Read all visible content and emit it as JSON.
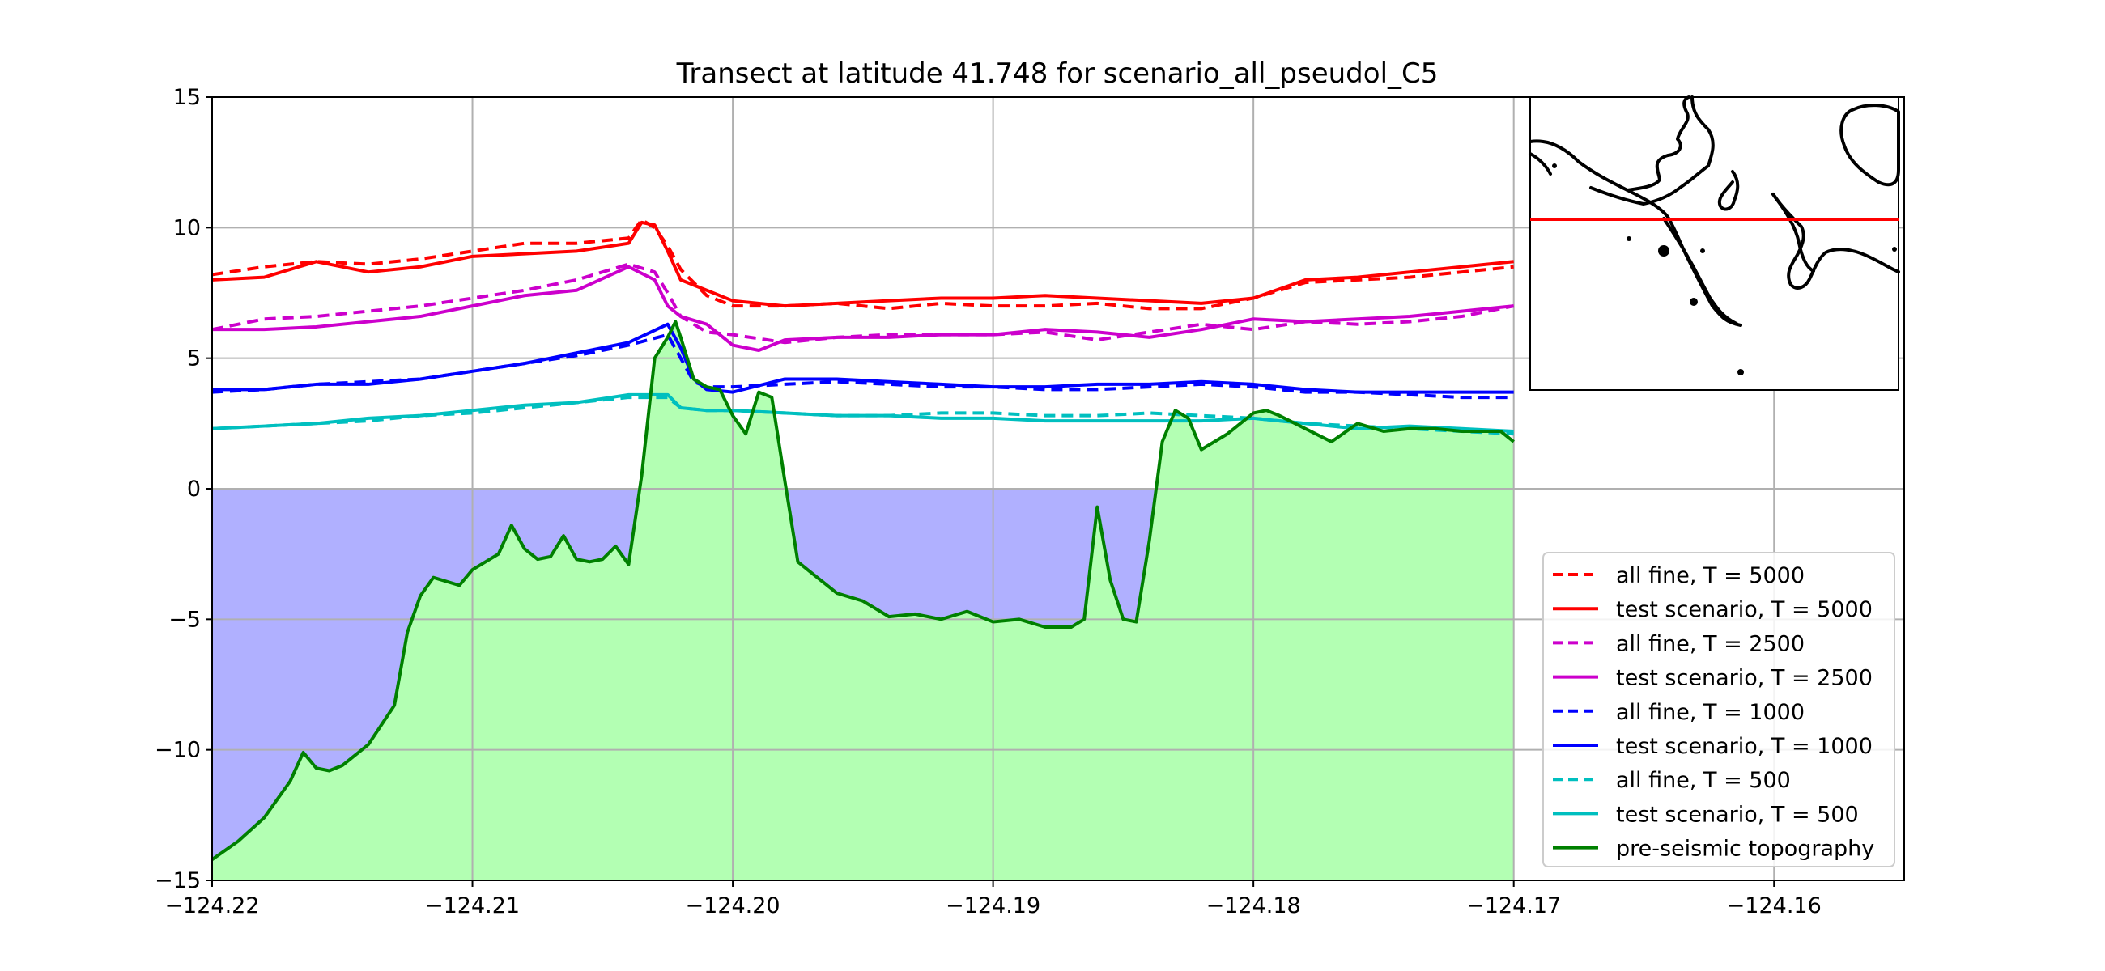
{
  "chart_data": {
    "type": "line",
    "title": "Transect at latitude 41.748 for scenario_all_pseudol_C5",
    "xlabel": "",
    "ylabel": "",
    "xlim": [
      -124.22,
      -124.155
    ],
    "ylim": [
      -15,
      15
    ],
    "x_ticks": [
      -124.22,
      -124.21,
      -124.2,
      -124.19,
      -124.18,
      -124.17,
      -124.16
    ],
    "x_tick_labels": [
      "−124.22",
      "−124.21",
      "−124.20",
      "−124.19",
      "−124.18",
      "−124.17",
      "−124.16"
    ],
    "y_ticks": [
      -15,
      -10,
      -5,
      0,
      5,
      10,
      15
    ],
    "y_tick_labels": [
      "−15",
      "−10",
      "−5",
      "0",
      "5",
      "10",
      "15"
    ],
    "grid": true,
    "legend_position": "lower-right",
    "water_color": "#b0b0ff",
    "land_color": "#b3ffb3",
    "series": [
      {
        "name": "all fine, T = 5000",
        "color": "#ff0000",
        "dash": true,
        "x": [
          -124.22,
          -124.218,
          -124.216,
          -124.214,
          -124.212,
          -124.21,
          -124.208,
          -124.206,
          -124.204,
          -124.2035,
          -124.203,
          -124.2025,
          -124.202,
          -124.201,
          -124.2,
          -124.198,
          -124.196,
          -124.194,
          -124.192,
          -124.19,
          -124.188,
          -124.186,
          -124.184,
          -124.182,
          -124.18,
          -124.178,
          -124.176,
          -124.174,
          -124.172,
          -124.17
        ],
        "y": [
          8.2,
          8.5,
          8.7,
          8.6,
          8.8,
          9.1,
          9.4,
          9.4,
          9.6,
          10.3,
          10.0,
          9.3,
          8.4,
          7.4,
          7.0,
          7.0,
          7.1,
          6.9,
          7.1,
          7.0,
          7.0,
          7.1,
          6.9,
          6.9,
          7.3,
          7.9,
          8.0,
          8.1,
          8.3,
          8.5
        ]
      },
      {
        "name": "test scenario, T = 5000",
        "color": "#ff0000",
        "dash": false,
        "x": [
          -124.22,
          -124.218,
          -124.216,
          -124.214,
          -124.212,
          -124.21,
          -124.208,
          -124.206,
          -124.204,
          -124.2035,
          -124.203,
          -124.2025,
          -124.202,
          -124.201,
          -124.2,
          -124.198,
          -124.196,
          -124.194,
          -124.192,
          -124.19,
          -124.188,
          -124.186,
          -124.184,
          -124.182,
          -124.18,
          -124.178,
          -124.176,
          -124.174,
          -124.172,
          -124.17
        ],
        "y": [
          8.0,
          8.1,
          8.7,
          8.3,
          8.5,
          8.9,
          9.0,
          9.1,
          9.4,
          10.2,
          10.1,
          9.1,
          8.0,
          7.6,
          7.2,
          7.0,
          7.1,
          7.2,
          7.3,
          7.3,
          7.4,
          7.3,
          7.2,
          7.1,
          7.3,
          8.0,
          8.1,
          8.3,
          8.5,
          8.7
        ]
      },
      {
        "name": "all fine, T = 2500",
        "color": "#cc00cc",
        "dash": true,
        "x": [
          -124.22,
          -124.218,
          -124.216,
          -124.214,
          -124.212,
          -124.21,
          -124.208,
          -124.206,
          -124.204,
          -124.203,
          -124.2025,
          -124.202,
          -124.201,
          -124.2,
          -124.198,
          -124.196,
          -124.194,
          -124.192,
          -124.19,
          -124.188,
          -124.186,
          -124.184,
          -124.182,
          -124.18,
          -124.178,
          -124.176,
          -124.174,
          -124.172,
          -124.17
        ],
        "y": [
          6.1,
          6.5,
          6.6,
          6.8,
          7.0,
          7.3,
          7.6,
          8.0,
          8.6,
          8.3,
          7.5,
          6.6,
          6.0,
          5.9,
          5.6,
          5.8,
          5.9,
          5.9,
          5.9,
          6.0,
          5.7,
          6.0,
          6.3,
          6.1,
          6.4,
          6.3,
          6.4,
          6.6,
          7.0
        ]
      },
      {
        "name": "test scenario, T = 2500",
        "color": "#cc00cc",
        "dash": false,
        "x": [
          -124.22,
          -124.218,
          -124.216,
          -124.214,
          -124.212,
          -124.21,
          -124.208,
          -124.206,
          -124.204,
          -124.203,
          -124.2025,
          -124.202,
          -124.201,
          -124.2,
          -124.199,
          -124.198,
          -124.196,
          -124.194,
          -124.192,
          -124.19,
          -124.188,
          -124.186,
          -124.184,
          -124.182,
          -124.18,
          -124.178,
          -124.176,
          -124.174,
          -124.172,
          -124.17
        ],
        "y": [
          6.1,
          6.1,
          6.2,
          6.4,
          6.6,
          7.0,
          7.4,
          7.6,
          8.5,
          8.0,
          7.0,
          6.6,
          6.3,
          5.5,
          5.3,
          5.7,
          5.8,
          5.8,
          5.9,
          5.9,
          6.1,
          6.0,
          5.8,
          6.1,
          6.5,
          6.4,
          6.5,
          6.6,
          6.8,
          7.0
        ]
      },
      {
        "name": "all fine, T = 1000",
        "color": "#0000ff",
        "dash": true,
        "x": [
          -124.22,
          -124.218,
          -124.216,
          -124.214,
          -124.212,
          -124.21,
          -124.208,
          -124.206,
          -124.204,
          -124.2025,
          -124.202,
          -124.2015,
          -124.201,
          -124.2,
          -124.198,
          -124.196,
          -124.194,
          -124.192,
          -124.19,
          -124.188,
          -124.186,
          -124.184,
          -124.182,
          -124.18,
          -124.178,
          -124.176,
          -124.174,
          -124.172,
          -124.17
        ],
        "y": [
          3.7,
          3.8,
          4.0,
          4.1,
          4.2,
          4.5,
          4.8,
          5.1,
          5.5,
          5.9,
          5.0,
          4.1,
          3.9,
          3.9,
          4.0,
          4.1,
          4.0,
          3.9,
          3.9,
          3.8,
          3.8,
          3.9,
          4.0,
          3.9,
          3.7,
          3.7,
          3.6,
          3.5,
          3.5
        ]
      },
      {
        "name": "test scenario, T = 1000",
        "color": "#0000ff",
        "dash": false,
        "x": [
          -124.22,
          -124.218,
          -124.216,
          -124.214,
          -124.212,
          -124.21,
          -124.208,
          -124.206,
          -124.204,
          -124.2025,
          -124.202,
          -124.2015,
          -124.201,
          -124.2,
          -124.198,
          -124.196,
          -124.194,
          -124.192,
          -124.19,
          -124.188,
          -124.186,
          -124.184,
          -124.182,
          -124.18,
          -124.178,
          -124.176,
          -124.174,
          -124.172,
          -124.17
        ],
        "y": [
          3.8,
          3.8,
          4.0,
          4.0,
          4.2,
          4.5,
          4.8,
          5.2,
          5.6,
          6.3,
          5.4,
          4.2,
          3.8,
          3.7,
          4.2,
          4.2,
          4.1,
          4.0,
          3.9,
          3.9,
          4.0,
          4.0,
          4.1,
          4.0,
          3.8,
          3.7,
          3.7,
          3.7,
          3.7
        ]
      },
      {
        "name": "all fine, T =  500",
        "color": "#00bfbf",
        "dash": true,
        "x": [
          -124.22,
          -124.218,
          -124.216,
          -124.214,
          -124.212,
          -124.21,
          -124.208,
          -124.206,
          -124.204,
          -124.2025,
          -124.202,
          -124.201,
          -124.2,
          -124.198,
          -124.196,
          -124.194,
          -124.192,
          -124.19,
          -124.188,
          -124.186,
          -124.184,
          -124.182,
          -124.18,
          -124.178,
          -124.176,
          -124.174,
          -124.172,
          -124.17
        ],
        "y": [
          2.3,
          2.4,
          2.5,
          2.6,
          2.8,
          2.9,
          3.1,
          3.3,
          3.5,
          3.5,
          3.1,
          3.0,
          3.0,
          2.9,
          2.8,
          2.8,
          2.9,
          2.9,
          2.8,
          2.8,
          2.9,
          2.8,
          2.7,
          2.5,
          2.4,
          2.3,
          2.2,
          2.1
        ]
      },
      {
        "name": "test scenario, T =  500",
        "color": "#00bfbf",
        "dash": false,
        "x": [
          -124.22,
          -124.218,
          -124.216,
          -124.214,
          -124.212,
          -124.21,
          -124.208,
          -124.206,
          -124.204,
          -124.2025,
          -124.202,
          -124.201,
          -124.2,
          -124.198,
          -124.196,
          -124.194,
          -124.192,
          -124.19,
          -124.188,
          -124.186,
          -124.184,
          -124.182,
          -124.18,
          -124.178,
          -124.176,
          -124.174,
          -124.172,
          -124.17
        ],
        "y": [
          2.3,
          2.4,
          2.5,
          2.7,
          2.8,
          3.0,
          3.2,
          3.3,
          3.6,
          3.6,
          3.1,
          3.0,
          3.0,
          2.9,
          2.8,
          2.8,
          2.7,
          2.7,
          2.6,
          2.6,
          2.6,
          2.6,
          2.7,
          2.5,
          2.3,
          2.4,
          2.3,
          2.2
        ]
      },
      {
        "name": "pre-seismic topography",
        "color": "#008000",
        "dash": false,
        "x": [
          -124.22,
          -124.219,
          -124.218,
          -124.217,
          -124.2165,
          -124.216,
          -124.2155,
          -124.215,
          -124.214,
          -124.213,
          -124.2125,
          -124.212,
          -124.2115,
          -124.2105,
          -124.21,
          -124.209,
          -124.2085,
          -124.208,
          -124.2075,
          -124.207,
          -124.2065,
          -124.206,
          -124.2055,
          -124.205,
          -124.2045,
          -124.204,
          -124.2035,
          -124.203,
          -124.2025,
          -124.2022,
          -124.202,
          -124.2015,
          -124.201,
          -124.2005,
          -124.2,
          -124.1995,
          -124.199,
          -124.1985,
          -124.198,
          -124.1975,
          -124.197,
          -124.196,
          -124.195,
          -124.194,
          -124.193,
          -124.192,
          -124.191,
          -124.19,
          -124.189,
          -124.188,
          -124.187,
          -124.1865,
          -124.186,
          -124.1855,
          -124.185,
          -124.1845,
          -124.184,
          -124.1835,
          -124.183,
          -124.1825,
          -124.182,
          -124.181,
          -124.18,
          -124.1795,
          -124.179,
          -124.178,
          -124.177,
          -124.176,
          -124.175,
          -124.174,
          -124.173,
          -124.172,
          -124.1705,
          -124.17
        ],
        "y": [
          -14.2,
          -13.5,
          -12.6,
          -11.2,
          -10.1,
          -10.7,
          -10.8,
          -10.6,
          -9.8,
          -8.3,
          -5.5,
          -4.1,
          -3.4,
          -3.7,
          -3.1,
          -2.5,
          -1.4,
          -2.3,
          -2.7,
          -2.6,
          -1.8,
          -2.7,
          -2.8,
          -2.7,
          -2.2,
          -2.9,
          0.5,
          5.0,
          5.8,
          6.4,
          5.8,
          4.2,
          3.9,
          3.8,
          2.8,
          2.1,
          3.7,
          3.5,
          0.3,
          -2.8,
          -3.2,
          -4.0,
          -4.3,
          -4.9,
          -4.8,
          -5.0,
          -4.7,
          -5.1,
          -5.0,
          -5.3,
          -5.3,
          -5.0,
          -0.7,
          -3.5,
          -5.0,
          -5.1,
          -2.0,
          1.8,
          3.0,
          2.7,
          1.5,
          2.1,
          2.9,
          3.0,
          2.8,
          2.3,
          1.8,
          2.5,
          2.2,
          2.3,
          2.3,
          2.2,
          2.2,
          1.8
        ]
      }
    ],
    "inset": {
      "label": "",
      "transect_color": "#ff0000",
      "coast_color": "#000000"
    }
  }
}
